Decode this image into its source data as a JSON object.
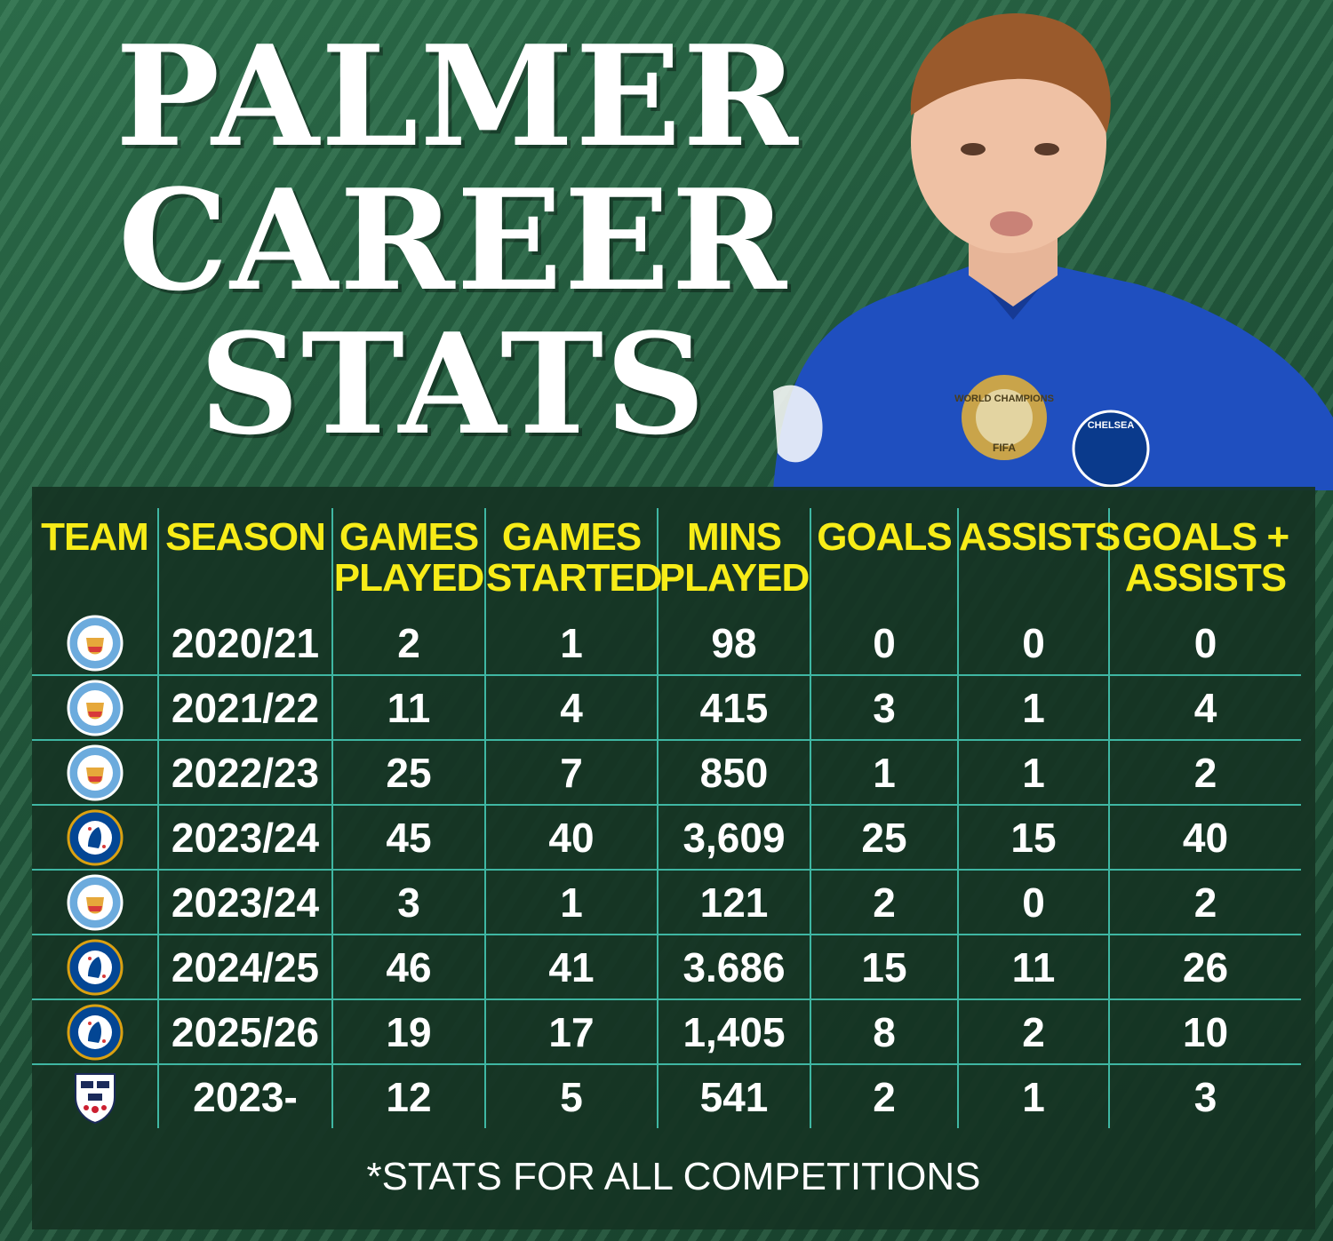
{
  "title": {
    "line1": "PALMER",
    "line2": "CAREER",
    "line3": "STATS"
  },
  "photo": {
    "jersey_badge_text": "WORLD CHAMPIONS",
    "jersey_badge_sub": "FIFA",
    "club_crest_text": "CHELSEA",
    "jersey_color": "#1f4fbf"
  },
  "table": {
    "headers": [
      "TEAM",
      "SEASON",
      "GAMES PLAYED",
      "GAMES STARTED",
      "MINS PLAYED",
      "GOALS",
      "ASSISTS",
      "GOALS + ASSISTS"
    ],
    "rows": [
      {
        "team": "man-city-crest",
        "season": "2020/21",
        "games_played": "2",
        "games_started": "1",
        "mins_played": "98",
        "goals": "0",
        "assists": "0",
        "goals_assists": "0"
      },
      {
        "team": "man-city-crest",
        "season": "2021/22",
        "games_played": "11",
        "games_started": "4",
        "mins_played": "415",
        "goals": "3",
        "assists": "1",
        "goals_assists": "4"
      },
      {
        "team": "man-city-crest",
        "season": "2022/23",
        "games_played": "25",
        "games_started": "7",
        "mins_played": "850",
        "goals": "1",
        "assists": "1",
        "goals_assists": "2"
      },
      {
        "team": "chelsea-crest",
        "season": "2023/24",
        "games_played": "45",
        "games_started": "40",
        "mins_played": "3,609",
        "goals": "25",
        "assists": "15",
        "goals_assists": "40"
      },
      {
        "team": "man-city-crest",
        "season": "2023/24",
        "games_played": "3",
        "games_started": "1",
        "mins_played": "121",
        "goals": "2",
        "assists": "0",
        "goals_assists": "2"
      },
      {
        "team": "chelsea-crest",
        "season": "2024/25",
        "games_played": "46",
        "games_started": "41",
        "mins_played": "3.686",
        "goals": "15",
        "assists": "11",
        "goals_assists": "26"
      },
      {
        "team": "chelsea-crest",
        "season": "2025/26",
        "games_played": "19",
        "games_started": "17",
        "mins_played": "1,405",
        "goals": "8",
        "assists": "2",
        "goals_assists": "10"
      },
      {
        "team": "england-crest",
        "season": "2023-",
        "games_played": "12",
        "games_started": "5",
        "mins_played": "541",
        "goals": "2",
        "assists": "1",
        "goals_assists": "3"
      }
    ]
  },
  "footnote": "*STATS FOR ALL COMPETITIONS",
  "colors": {
    "header_yellow": "#f7ec18",
    "grid_teal": "#3fb7a3",
    "background_green": "#1d4a33",
    "man_city_blue": "#6cabdd",
    "chelsea_blue": "#034694"
  }
}
